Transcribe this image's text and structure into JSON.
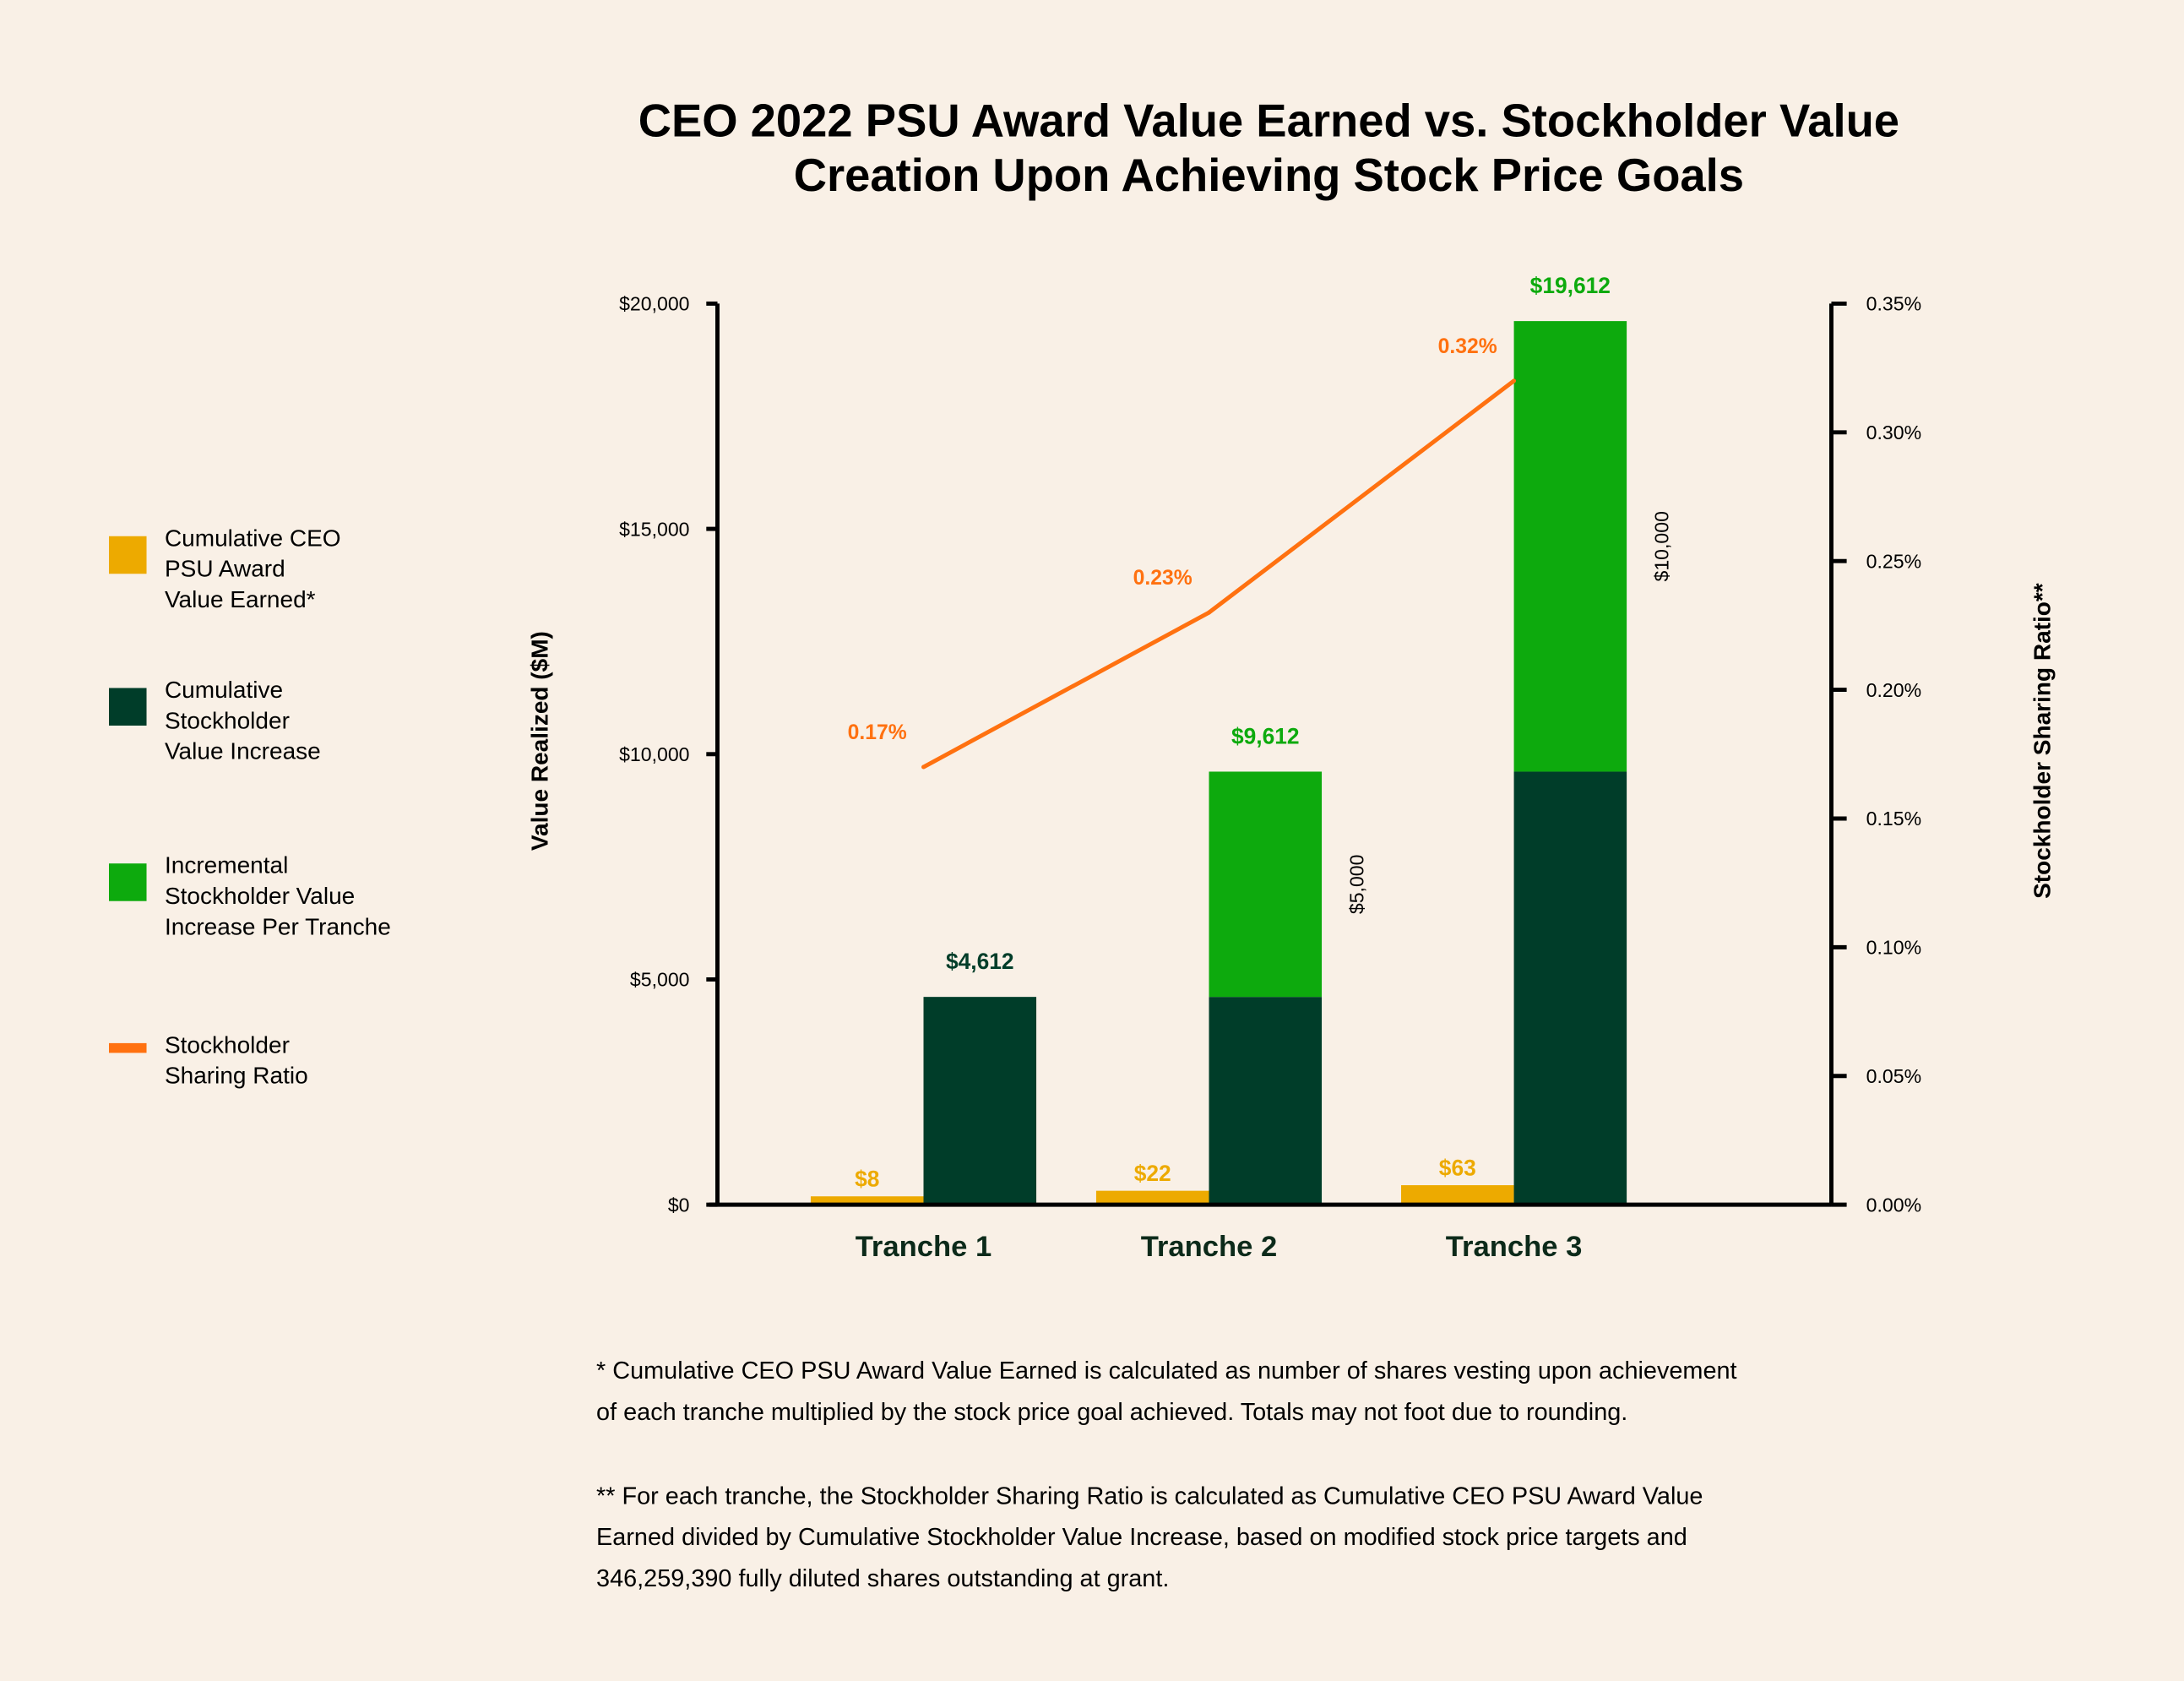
{
  "chart_data": {
    "type": "bar",
    "title": [
      "CEO 2022 PSU Award Value Earned vs. Stockholder Value",
      "Creation Upon Achieving Stock Price Goals"
    ],
    "categories": [
      "Tranche 1",
      "Tranche 2",
      "Tranche 3"
    ],
    "ylabel": "Value Realized ($M)",
    "y2label": "Stockholder Sharing Ratio**",
    "ylim": [
      0,
      20000
    ],
    "y2lim": [
      0,
      0.35
    ],
    "yticks": [
      "$0",
      "$5,000",
      "$10,000",
      "$15,000",
      "$20,000"
    ],
    "y2ticks": [
      "0.00%",
      "0.05%",
      "0.10%",
      "0.15%",
      "0.20%",
      "0.25%",
      "0.30%",
      "0.35%"
    ],
    "grid": false,
    "legend_position": "left",
    "series": [
      {
        "name": "Cumulative CEO PSU Award Value Earned*",
        "legend_lines": [
          "Cumulative CEO",
          "PSU Award",
          "Value Earned*"
        ],
        "type": "bar",
        "color": "#edaa00",
        "values": [
          8,
          22,
          63
        ],
        "labels": [
          "$8",
          "$22",
          "$63"
        ]
      },
      {
        "name": "Cumulative Stockholder Value Increase",
        "legend_lines": [
          "Cumulative",
          "Stockholder",
          "Value Increase"
        ],
        "type": "stacked-bar-base",
        "color": "#003d29",
        "values": [
          4612,
          4612,
          9612
        ]
      },
      {
        "name": "Incremental Stockholder Value Increase Per Tranche",
        "legend_lines": [
          "Incremental",
          "Stockholder Value",
          "Increase Per Tranche"
        ],
        "type": "stacked-bar-top",
        "color": "#0daa0d",
        "values": [
          0,
          5000,
          10000
        ],
        "labels": [
          "",
          "$5,000",
          "$10,000"
        ]
      },
      {
        "name": "Stockholder Sharing Ratio",
        "legend_lines": [
          "Stockholder",
          "Sharing Ratio"
        ],
        "type": "line",
        "axis": "right",
        "color": "#ff7110",
        "values": [
          0.17,
          0.23,
          0.32
        ],
        "labels": [
          "0.17%",
          "0.23%",
          "0.32%"
        ]
      }
    ],
    "totals": [
      "$4,612",
      "$9,612",
      "$19,612"
    ],
    "total_colors": [
      "#003d29",
      "#0daa0d",
      "#0daa0d"
    ]
  },
  "footnotes": [
    [
      "* Cumulative CEO PSU Award Value Earned is calculated as number of shares vesting upon achievement",
      "of each tranche multiplied by the stock price goal achieved. Totals may not foot due to rounding."
    ],
    [
      "** For each tranche, the Stockholder Sharing Ratio is calculated as Cumulative CEO PSU Award Value",
      "Earned divided by Cumulative Stockholder Value Increase, based on modified stock price targets and",
      "346,259,390 fully diluted shares outstanding at grant."
    ]
  ]
}
